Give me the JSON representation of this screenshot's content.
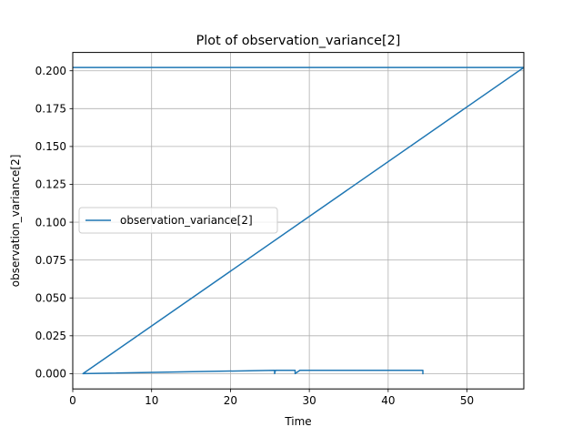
{
  "chart_data": {
    "type": "line",
    "title": "Plot of observation_variance[2]",
    "xlabel": "Time",
    "ylabel": "observation_variance[2]",
    "xlim": [
      0,
      57.2
    ],
    "ylim": [
      -0.0101,
      0.2121
    ],
    "xticks": [
      0,
      10,
      20,
      30,
      40,
      50
    ],
    "xtick_labels": [
      "0",
      "10",
      "20",
      "30",
      "40",
      "50"
    ],
    "yticks": [
      0.0,
      0.025,
      0.05,
      0.075,
      0.1,
      0.125,
      0.15,
      0.175,
      0.2
    ],
    "ytick_labels": [
      "0.000",
      "0.025",
      "0.050",
      "0.075",
      "0.100",
      "0.125",
      "0.150",
      "0.175",
      "0.200"
    ],
    "grid": true,
    "legend_position": "center-left",
    "series": [
      {
        "name": "observation_variance[2]",
        "color": "#1f77b4",
        "x": [
          0.0,
          57.2,
          57.2,
          1.3,
          1.3,
          25.6,
          25.6,
          25.7,
          25.7,
          28.2,
          28.2,
          28.8,
          28.8,
          44.1,
          44.4,
          44.4
        ],
        "y": [
          0.2022,
          0.2022,
          0.2022,
          0.0,
          0.0,
          0.0022,
          0.0,
          0.0022,
          0.0022,
          0.0022,
          0.0,
          0.0022,
          0.0022,
          0.0022,
          0.0022,
          0.0
        ]
      }
    ]
  }
}
